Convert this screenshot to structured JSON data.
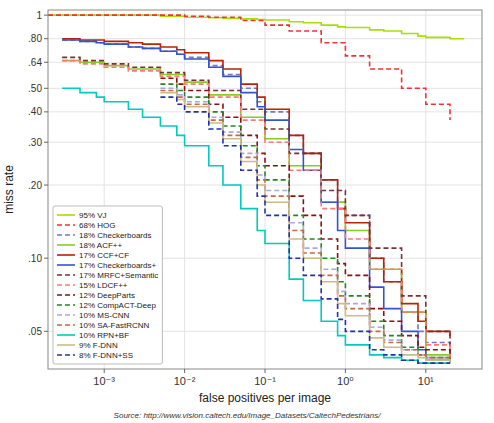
{
  "chart_data": {
    "type": "step",
    "xlabel": "false positives per image",
    "ylabel": "miss rate",
    "annotations": [
      "Source: http://www.vision.caltech.edu/Image_Datasets/CaltechPedestrians/"
    ],
    "log": true,
    "grid": true,
    "legend": "lower left",
    "xlim": [
      0.0002,
      50
    ],
    "ylim": [
      0.035,
      1.05
    ],
    "xticks": [
      {
        "value": 0.001,
        "label": "10⁻³"
      },
      {
        "value": 0.01,
        "label": "10⁻²"
      },
      {
        "value": 0.1,
        "label": "10⁻¹"
      },
      {
        "value": 1,
        "label": "10⁰"
      },
      {
        "value": 10,
        "label": "10¹"
      }
    ],
    "yticks": [
      {
        "value": 0.05,
        "label": ".05"
      },
      {
        "value": 0.1,
        "label": ".10"
      },
      {
        "value": 0.2,
        "label": ".20"
      },
      {
        "value": 0.3,
        "label": ".30"
      },
      {
        "value": 0.4,
        "label": ".40"
      },
      {
        "value": 0.5,
        "label": ".50"
      },
      {
        "value": 0.64,
        "label": ".64"
      },
      {
        "value": 0.8,
        "label": ".80"
      },
      1
    ],
    "series": [
      {
        "name": "95% VJ",
        "color": "#aadd00",
        "line_style": "solid",
        "x": [
          0.0002,
          0.0003,
          0.0005,
          0.0008,
          0.001,
          0.002,
          0.003,
          0.005,
          0.008,
          0.01,
          0.02,
          0.03,
          0.05,
          0.08,
          0.1,
          0.2,
          0.3,
          0.5,
          0.8,
          1,
          2,
          3,
          5,
          8,
          10,
          20,
          30
        ],
        "values": [
          1.0,
          1.0,
          1.0,
          1.0,
          1.0,
          1.0,
          1.0,
          0.99,
          0.99,
          0.98,
          0.975,
          0.97,
          0.965,
          0.96,
          0.955,
          0.94,
          0.93,
          0.91,
          0.895,
          0.89,
          0.87,
          0.86,
          0.84,
          0.82,
          0.81,
          0.8,
          0.8
        ]
      },
      {
        "name": "68% HOG",
        "color": "#ee3333",
        "line_style": "dashed",
        "x": [
          0.0002,
          0.0005,
          0.001,
          0.002,
          0.005,
          0.01,
          0.02,
          0.05,
          0.1,
          0.2,
          0.5,
          1,
          2,
          5,
          10,
          20
        ],
        "values": [
          1.0,
          1.0,
          1.0,
          1.0,
          1.0,
          0.99,
          0.98,
          0.95,
          0.91,
          0.86,
          0.77,
          0.68,
          0.6,
          0.5,
          0.43,
          0.37
        ]
      },
      {
        "name": "18% Checkerboards",
        "color": "#7777cc",
        "line_style": "dashed",
        "x": [
          0.0003,
          0.0005,
          0.0008,
          0.001,
          0.002,
          0.003,
          0.005,
          0.008,
          0.01,
          0.02,
          0.03,
          0.05,
          0.08,
          0.1,
          0.2,
          0.3,
          0.5,
          0.8,
          1,
          2,
          3,
          5,
          8,
          10,
          20
        ],
        "values": [
          0.79,
          0.78,
          0.77,
          0.76,
          0.74,
          0.73,
          0.71,
          0.69,
          0.67,
          0.62,
          0.57,
          0.5,
          0.44,
          0.4,
          0.32,
          0.27,
          0.21,
          0.17,
          0.15,
          0.1,
          0.08,
          0.06,
          0.05,
          0.045,
          0.04
        ]
      },
      {
        "name": "18% ACF++",
        "color": "#88cc22",
        "line_style": "solid",
        "x": [
          0.0003,
          0.0005,
          0.001,
          0.002,
          0.005,
          0.01,
          0.02,
          0.05,
          0.1,
          0.2,
          0.5,
          1,
          2,
          5,
          10,
          20
        ],
        "values": [
          0.65,
          0.64,
          0.62,
          0.6,
          0.57,
          0.53,
          0.47,
          0.38,
          0.31,
          0.24,
          0.17,
          0.13,
          0.09,
          0.06,
          0.04,
          0.038
        ]
      },
      {
        "name": "17% CCF+CF",
        "color": "#bb2200",
        "line_style": "solid",
        "x": [
          0.0003,
          0.0005,
          0.0008,
          0.001,
          0.002,
          0.003,
          0.005,
          0.008,
          0.01,
          0.02,
          0.03,
          0.05,
          0.08,
          0.1,
          0.2,
          0.3,
          0.5,
          0.8,
          1,
          2,
          3,
          5,
          8,
          10,
          20
        ],
        "values": [
          0.8,
          0.79,
          0.79,
          0.78,
          0.77,
          0.76,
          0.74,
          0.72,
          0.7,
          0.65,
          0.6,
          0.52,
          0.46,
          0.41,
          0.32,
          0.27,
          0.21,
          0.16,
          0.14,
          0.1,
          0.08,
          0.065,
          0.055,
          0.05,
          0.048
        ]
      },
      {
        "name": "17% Checkerboards+",
        "color": "#3355cc",
        "line_style": "solid",
        "x": [
          0.0003,
          0.0005,
          0.0008,
          0.001,
          0.002,
          0.003,
          0.005,
          0.008,
          0.01,
          0.02,
          0.03,
          0.05,
          0.08,
          0.1,
          0.2,
          0.3,
          0.5,
          0.8,
          1,
          2,
          3,
          5,
          8,
          10,
          20
        ],
        "values": [
          0.79,
          0.78,
          0.77,
          0.76,
          0.74,
          0.73,
          0.71,
          0.69,
          0.66,
          0.61,
          0.56,
          0.48,
          0.42,
          0.37,
          0.28,
          0.23,
          0.17,
          0.13,
          0.11,
          0.076,
          0.062,
          0.05,
          0.042,
          0.038,
          0.037
        ]
      },
      {
        "name": "17% MRFC+Semantic",
        "color": "#773333",
        "line_style": "dashed",
        "x": [
          0.0003,
          0.0005,
          0.001,
          0.002,
          0.005,
          0.01,
          0.02,
          0.05,
          0.1,
          0.2,
          0.5,
          1,
          2,
          5,
          10,
          20
        ],
        "values": [
          0.67,
          0.65,
          0.63,
          0.61,
          0.58,
          0.54,
          0.49,
          0.41,
          0.34,
          0.27,
          0.19,
          0.15,
          0.11,
          0.07,
          0.05,
          0.042
        ]
      },
      {
        "name": "15% LDCF++",
        "color": "#ff7777",
        "line_style": "dashed",
        "x": [
          0.0003,
          0.0005,
          0.001,
          0.002,
          0.005,
          0.01,
          0.02,
          0.05,
          0.1,
          0.2,
          0.5,
          1,
          2,
          5,
          10,
          20
        ],
        "values": [
          0.65,
          0.63,
          0.61,
          0.59,
          0.56,
          0.52,
          0.46,
          0.37,
          0.3,
          0.23,
          0.16,
          0.12,
          0.09,
          0.06,
          0.044,
          0.038
        ]
      },
      {
        "name": "12% DeepParts",
        "color": "#881111",
        "line_style": "dashed",
        "x": [
          0.005,
          0.008,
          0.01,
          0.02,
          0.03,
          0.05,
          0.08,
          0.1,
          0.2,
          0.3,
          0.5,
          0.8,
          1,
          2,
          3,
          5,
          8,
          10,
          20
        ],
        "values": [
          0.55,
          0.52,
          0.49,
          0.43,
          0.38,
          0.32,
          0.27,
          0.24,
          0.18,
          0.15,
          0.12,
          0.095,
          0.085,
          0.062,
          0.055,
          0.048,
          0.043,
          0.042,
          0.04
        ]
      },
      {
        "name": "12% CompACT-Deep",
        "color": "#228822",
        "line_style": "dashed",
        "x": [
          0.005,
          0.008,
          0.01,
          0.02,
          0.03,
          0.05,
          0.08,
          0.1,
          0.2,
          0.3,
          0.5,
          0.8,
          1,
          2,
          3,
          5,
          8,
          10,
          20
        ],
        "values": [
          0.52,
          0.49,
          0.46,
          0.4,
          0.35,
          0.29,
          0.24,
          0.21,
          0.15,
          0.12,
          0.1,
          0.08,
          0.07,
          0.055,
          0.048,
          0.043,
          0.04,
          0.039,
          0.038
        ]
      },
      {
        "name": "10% MS-CNN",
        "color": "#aaaadd",
        "line_style": "dashed",
        "x": [
          0.005,
          0.008,
          0.01,
          0.02,
          0.03,
          0.05,
          0.08,
          0.1,
          0.2,
          0.3,
          0.5,
          0.8,
          1,
          2,
          3,
          5,
          8,
          10,
          20
        ],
        "values": [
          0.5,
          0.47,
          0.44,
          0.38,
          0.33,
          0.27,
          0.22,
          0.19,
          0.14,
          0.11,
          0.09,
          0.073,
          0.065,
          0.052,
          0.046,
          0.042,
          0.04,
          0.039,
          0.038
        ]
      },
      {
        "name": "10% SA-FastRCNN",
        "color": "#cc6644",
        "line_style": "dashed",
        "x": [
          0.005,
          0.008,
          0.01,
          0.02,
          0.03,
          0.05,
          0.08,
          0.1,
          0.2,
          0.3,
          0.5,
          0.8,
          1,
          2,
          3,
          5,
          8,
          10,
          20
        ],
        "values": [
          0.49,
          0.46,
          0.43,
          0.37,
          0.32,
          0.26,
          0.21,
          0.18,
          0.13,
          0.105,
          0.085,
          0.07,
          0.062,
          0.05,
          0.045,
          0.042,
          0.04,
          0.039,
          0.038
        ]
      },
      {
        "name": "10% RPN+BF",
        "color": "#00ccbb",
        "line_style": "solid",
        "x": [
          0.0003,
          0.0005,
          0.0008,
          0.001,
          0.002,
          0.003,
          0.005,
          0.008,
          0.01,
          0.02,
          0.03,
          0.05,
          0.08,
          0.1,
          0.2,
          0.3,
          0.5,
          0.8,
          1,
          2,
          3,
          5,
          8,
          10,
          20
        ],
        "values": [
          0.5,
          0.48,
          0.46,
          0.44,
          0.41,
          0.38,
          0.35,
          0.32,
          0.29,
          0.24,
          0.2,
          0.16,
          0.13,
          0.115,
          0.082,
          0.067,
          0.055,
          0.048,
          0.044,
          0.04,
          0.039,
          0.038,
          0.037,
          0.037,
          0.037
        ]
      },
      {
        "name": "9% F-DNN",
        "color": "#ccbb88",
        "line_style": "solid",
        "x": [
          0.005,
          0.008,
          0.01,
          0.02,
          0.03,
          0.05,
          0.08,
          0.1,
          0.2,
          0.3,
          0.5,
          0.8,
          1,
          2,
          3,
          5,
          8,
          10,
          20
        ],
        "values": [
          0.48,
          0.45,
          0.42,
          0.36,
          0.31,
          0.25,
          0.2,
          0.17,
          0.12,
          0.1,
          0.08,
          0.065,
          0.058,
          0.047,
          0.043,
          0.04,
          0.039,
          0.038,
          0.037
        ]
      },
      {
        "name": "8% F-DNN+SS",
        "color": "#2233aa",
        "line_style": "dashed",
        "x": [
          0.005,
          0.008,
          0.01,
          0.02,
          0.03,
          0.05,
          0.08,
          0.1,
          0.2,
          0.3,
          0.5,
          0.8,
          1,
          2,
          3,
          5,
          8,
          10,
          20
        ],
        "values": [
          0.46,
          0.43,
          0.4,
          0.34,
          0.29,
          0.23,
          0.18,
          0.15,
          0.1,
          0.085,
          0.068,
          0.056,
          0.05,
          0.042,
          0.04,
          0.038,
          0.037,
          0.037,
          0.037
        ]
      }
    ]
  }
}
